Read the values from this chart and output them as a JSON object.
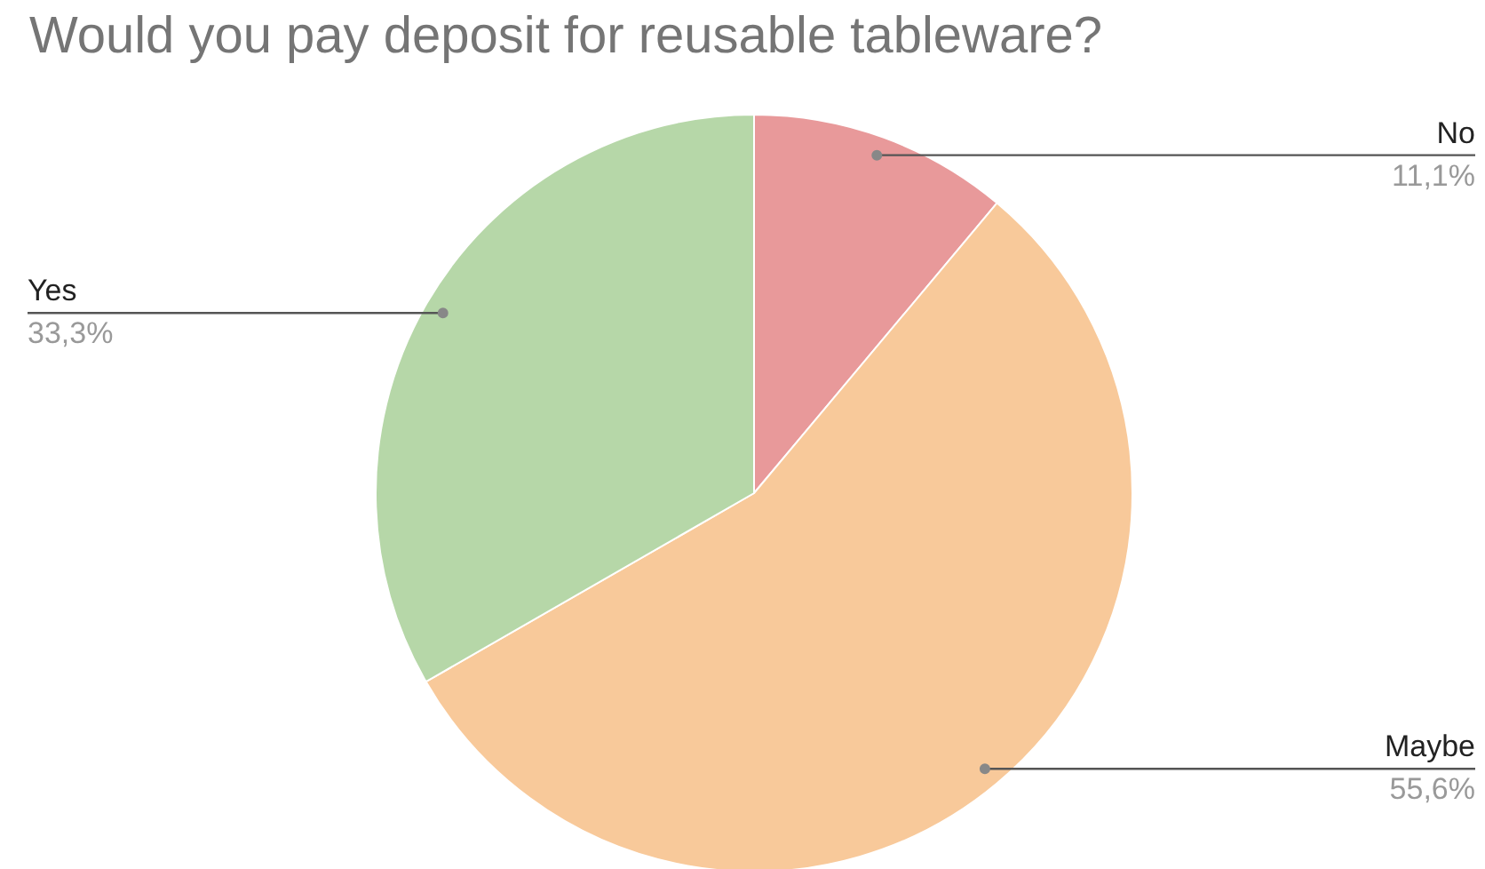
{
  "chart_data": {
    "type": "pie",
    "title": "Would you pay deposit for reusable tableware?",
    "categories": [
      "No",
      "Maybe",
      "Yes"
    ],
    "values": [
      11.1,
      55.6,
      33.3
    ],
    "colors": [
      "#e8999a",
      "#f8c99a",
      "#b6d7a8"
    ],
    "value_labels": [
      "11,1%",
      "55,6%",
      "33,3%"
    ]
  }
}
